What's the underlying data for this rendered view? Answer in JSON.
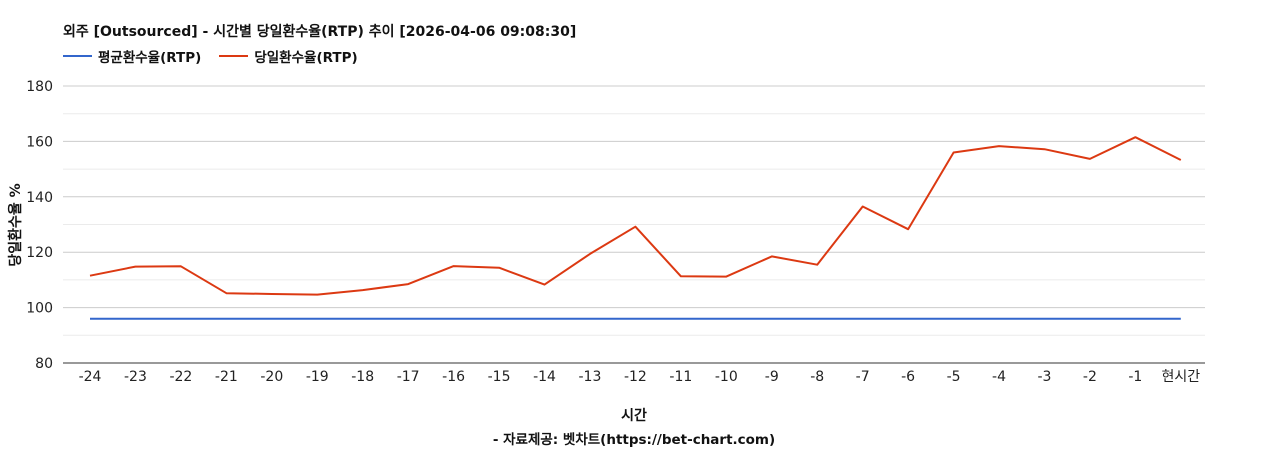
{
  "chart_data": {
    "type": "line",
    "title": "외주 [Outsourced] - 시간별 당일환수율(RTP) 추이 [2026-04-06 09:08:30]",
    "xlabel": "시간",
    "ylabel": "당일환수율 %",
    "source": "- 자료제공: 벳차트(https://bet-chart.com)",
    "categories": [
      "-24",
      "-23",
      "-22",
      "-21",
      "-20",
      "-19",
      "-18",
      "-17",
      "-16",
      "-15",
      "-14",
      "-13",
      "-12",
      "-11",
      "-10",
      "-9",
      "-8",
      "-7",
      "-6",
      "-5",
      "-4",
      "-3",
      "-2",
      "-1",
      "현시간"
    ],
    "ylim": [
      80,
      180
    ],
    "yticks": [
      80,
      100,
      120,
      140,
      160,
      180
    ],
    "grid": true,
    "legend_position": "top-left",
    "series": [
      {
        "name": "평균환수율(RTP)",
        "color": "#3366cc",
        "values": [
          96,
          96,
          96,
          96,
          96,
          96,
          96,
          96,
          96,
          96,
          96,
          96,
          96,
          96,
          96,
          96,
          96,
          96,
          96,
          96,
          96,
          96,
          96,
          96,
          96
        ]
      },
      {
        "name": "당일환수율(RTP)",
        "color": "#dc3912",
        "values": [
          111.5,
          114.8,
          114.9,
          105.2,
          104.9,
          104.7,
          106.3,
          108.5,
          115,
          114.4,
          108.3,
          119.4,
          129.2,
          111.3,
          111.2,
          118.5,
          115.5,
          136.5,
          128.3,
          156,
          158.3,
          157.2,
          153.7,
          161.5,
          153.3
        ]
      }
    ]
  }
}
